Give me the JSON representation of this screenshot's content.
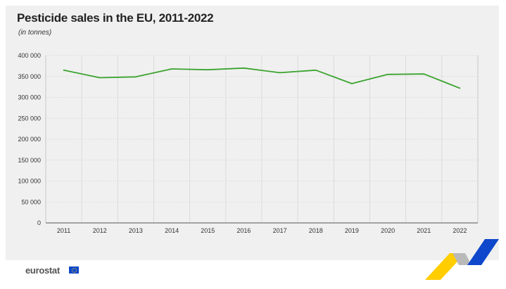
{
  "title": "Pesticide sales in the EU, 2011-2022",
  "subtitle": "(in tonnes)",
  "logo": "eurostat",
  "colors": {
    "line": "#3ba32f",
    "background": "#f0f0f0",
    "brand_yellow": "#ffcd00",
    "brand_blue": "#0e47cb"
  },
  "chart_data": {
    "type": "line",
    "title": "Pesticide sales in the EU, 2011-2022",
    "subtitle": "(in tonnes)",
    "categories": [
      "2011",
      "2012",
      "2013",
      "2014",
      "2015",
      "2016",
      "2017",
      "2018",
      "2019",
      "2020",
      "2021",
      "2022"
    ],
    "series": [
      {
        "values": [
          365000,
          347000,
          349000,
          368000,
          366000,
          370000,
          359000,
          365000,
          333000,
          355000,
          356000,
          322000
        ]
      }
    ],
    "ylim": [
      0,
      400000
    ],
    "yticks": [
      0,
      50000,
      100000,
      150000,
      200000,
      250000,
      300000,
      350000,
      400000
    ],
    "ytick_labels": [
      "0",
      "50 000",
      "100 000",
      "150 000",
      "200 000",
      "250 000",
      "300 000",
      "350 000",
      "400 000"
    ],
    "grid": true
  }
}
